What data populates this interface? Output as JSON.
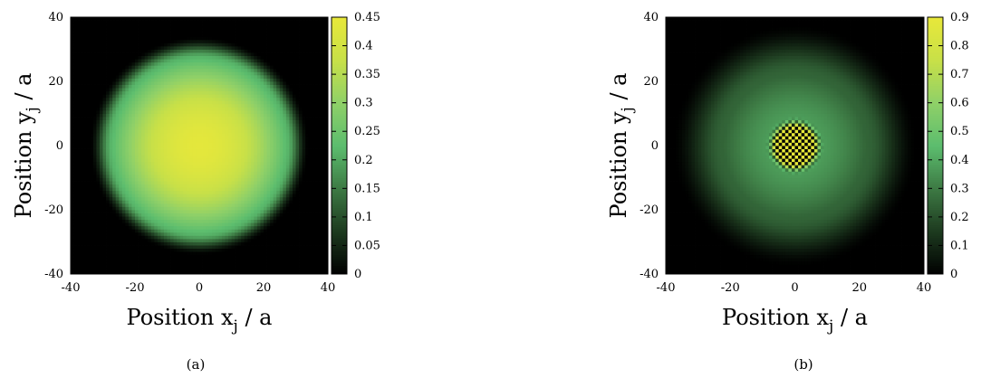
{
  "chart_data": [
    {
      "type": "heatmap",
      "caption": "(a)",
      "xlabel": "Position x",
      "xlabel_sub": "j",
      "xlabel_unit": " / a",
      "ylabel": "Position y",
      "ylabel_sub": "j",
      "ylabel_unit": " / a",
      "xlim": [
        -40,
        40
      ],
      "ylim": [
        -40,
        40
      ],
      "xticks": [
        -40,
        -20,
        0,
        20,
        40
      ],
      "yticks": [
        -40,
        -20,
        0,
        20,
        40
      ],
      "colorbar": {
        "range": [
          0,
          0.45
        ],
        "ticks": [
          "0",
          "0.05",
          "0.1",
          "0.15",
          "0.2",
          "0.25",
          "0.3",
          "0.35",
          "0.4",
          "0.45"
        ],
        "tick_values": [
          0,
          0.05,
          0.1,
          0.15,
          0.2,
          0.25,
          0.3,
          0.35,
          0.4,
          0.45
        ],
        "colormap": [
          "#000000",
          "#1d3a1f",
          "#3d7a44",
          "#5cbd6e",
          "#8fd068",
          "#c8e048",
          "#e8e83a"
        ]
      },
      "field": {
        "shape": "disk",
        "center": [
          0,
          0
        ],
        "radius": 34,
        "edge_width": 7,
        "center_value": 0.44,
        "edge_value": 0.22,
        "checkerboard": null
      }
    },
    {
      "type": "heatmap",
      "caption": "(b)",
      "xlabel": "Position x",
      "xlabel_sub": "j",
      "xlabel_unit": " / a",
      "ylabel": "Position y",
      "ylabel_sub": "j",
      "ylabel_unit": " / a",
      "xlim": [
        -40,
        40
      ],
      "ylim": [
        -40,
        40
      ],
      "xticks": [
        -40,
        -20,
        0,
        20,
        40
      ],
      "yticks": [
        -40,
        -20,
        0,
        20,
        40
      ],
      "colorbar": {
        "range": [
          0,
          0.9
        ],
        "ticks": [
          "0",
          "0.1",
          "0.2",
          "0.3",
          "0.4",
          "0.5",
          "0.6",
          "0.7",
          "0.8",
          "0.9"
        ],
        "tick_values": [
          0,
          0.1,
          0.2,
          0.3,
          0.4,
          0.5,
          0.6,
          0.7,
          0.8,
          0.9
        ],
        "colormap": [
          "#000000",
          "#1d3a1f",
          "#3d7a44",
          "#5cbd6e",
          "#8fd068",
          "#c8e048",
          "#e8e83a"
        ]
      },
      "field": {
        "shape": "disk",
        "center": [
          0,
          0
        ],
        "radius": 38,
        "edge_width": 16,
        "center_value": 0.4,
        "edge_value": 0.25,
        "checkerboard": {
          "radius": 9,
          "high": 0.9,
          "low": 0.0
        }
      }
    }
  ]
}
